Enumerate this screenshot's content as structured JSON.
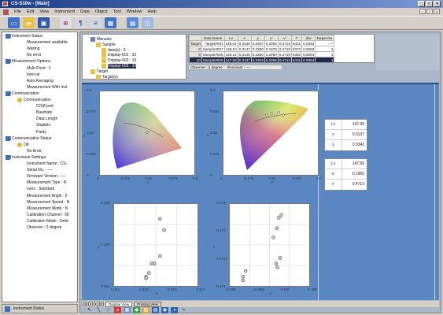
{
  "window": {
    "title": "CS-S10w - [Main]"
  },
  "menu": [
    "File",
    "Edit",
    "View",
    "Instrument",
    "Data",
    "Object",
    "Tool",
    "Window",
    "Help"
  ],
  "toolbar": [
    "new-icon",
    "open-icon",
    "save-icon",
    "measure-icon",
    "tool-icon",
    "list-icon",
    "chart-icon",
    "window-icon",
    "view-icon"
  ],
  "left_tree": [
    {
      "label": "Instrument Status",
      "level": 0,
      "bold": true
    },
    {
      "label": "Measurement available",
      "level": 2
    },
    {
      "label": "Waiting",
      "level": 2
    },
    {
      "label": "No error",
      "level": 2
    },
    {
      "label": "Measurement Options",
      "level": 0,
      "bold": true
    },
    {
      "label": "Multi-Point : 1",
      "level": 2
    },
    {
      "label": "Interval",
      "level": 2
    },
    {
      "label": "Auto Averaging",
      "level": 2
    },
    {
      "label": "Measurement With Inst",
      "level": 2
    },
    {
      "label": "Communication",
      "level": 0,
      "bold": true
    },
    {
      "label": "Communication",
      "level": 1
    },
    {
      "label": "COM port",
      "level": 3
    },
    {
      "label": "Baudrate",
      "level": 3
    },
    {
      "label": "Data Length",
      "level": 3
    },
    {
      "label": "Stopbits",
      "level": 3
    },
    {
      "label": "Parity",
      "level": 3
    },
    {
      "label": "Communication Status",
      "level": 0,
      "bold": true
    },
    {
      "label": "OK",
      "level": 1
    },
    {
      "label": "No Error",
      "level": 2
    },
    {
      "label": "Instrument Settings",
      "level": 0,
      "bold": true
    },
    {
      "label": "Instrument Name : CS-",
      "level": 2
    },
    {
      "label": "Serial No. : ----",
      "level": 2
    },
    {
      "label": "Firmware Version : ----",
      "level": 2
    },
    {
      "label": "Measurement Type : R",
      "level": 2
    },
    {
      "label": "Lens : Standard",
      "level": 2
    },
    {
      "label": "Measurement Angle : 0",
      "level": 2
    },
    {
      "label": "Measurement Speed : N",
      "level": 2
    },
    {
      "label": "Measurement Mode : N",
      "level": 2
    },
    {
      "label": "Calibration Channel : 00",
      "level": 2
    },
    {
      "label": "Calibration Mode : Defa",
      "level": 2
    },
    {
      "label": "Observer : 2 degree",
      "level": 2
    }
  ],
  "status_tab": "Instrument Status",
  "upper_tree": [
    "Manuals",
    "Sample",
    "data(s) : 0",
    "Display-001 : 10",
    "Display-002 : 10",
    "Display-003 : 10",
    "Target",
    "Target(s)"
  ],
  "table": {
    "headers": [
      "",
      "Data Name",
      "Lv",
      "x",
      "y",
      "u'",
      "v'",
      "T",
      "duv",
      "Target No."
    ],
    "rows": [
      {
        "label": "Target",
        "cells": [
          "Target#001",
          "146.01",
          "0.3130",
          "0.3347",
          "0.1905",
          "0.4715",
          "6421",
          "0.0053",
          "----"
        ],
        "selected": false
      },
      {
        "label": "8",
        "cells": [
          "Sample#027",
          "148.10",
          "0.3147",
          "0.3350",
          "0.1970",
          "0.4719",
          "6372",
          "0.0053",
          "1"
        ],
        "selected": false
      },
      {
        "label": "9",
        "cells": [
          "Sample#028",
          "148.12",
          "0.3145",
          "0.3350",
          "0.1960",
          "0.4719",
          "6382",
          "0.0054",
          "1"
        ],
        "selected": false
      },
      {
        "label": "10",
        "cells": [
          "Sample#029",
          "147.99",
          "0.3137",
          "0.3343",
          "0.1965",
          "0.4713",
          "6431",
          "0.0054",
          "1"
        ],
        "selected": true
      }
    ]
  },
  "observer_bar": {
    "observer": "Observer : 2 degree",
    "illuminant": "Illuminant : ----"
  },
  "values_panel": {
    "group1": [
      {
        "k": "Lv",
        "v": "147.99"
      },
      {
        "k": "x",
        "v": "0.3137"
      },
      {
        "k": "y",
        "v": "0.3343"
      }
    ],
    "group2": [
      {
        "k": "Lv",
        "v": "147.99"
      },
      {
        "k": "u'",
        "v": "0.1965"
      },
      {
        "k": "v'",
        "v": "0.4713"
      }
    ]
  },
  "plots": {
    "xy_diagram": {
      "xlabel": "x",
      "ylabel": "y",
      "xticks": [
        "0",
        "0.225",
        "0.45",
        "0.675",
        "0.9"
      ],
      "yticks": [
        "0.9",
        "0.675",
        "0.45",
        "0.225",
        "0"
      ]
    },
    "uv_diagram": {
      "xlabel": "u'",
      "ylabel": "v'",
      "xticks": [
        "0",
        "0.175",
        "0.35",
        "0.525",
        "0.7"
      ],
      "yticks": [
        "0.7",
        "0.525",
        "0.35",
        "0.175",
        "0"
      ]
    },
    "xy_zoom": {
      "xlabel": "x",
      "ylabel": "y",
      "xticks": [
        "0.311",
        "0.313",
        "0.315",
        "0.317"
      ],
      "yticks": [
        "0.338",
        "0.336",
        "0.334"
      ],
      "points": [
        [
          0.3143,
          0.3374
        ],
        [
          0.3146,
          0.3368
        ],
        [
          0.3143,
          0.3354
        ],
        [
          0.3139,
          0.335
        ],
        [
          0.3137,
          0.335
        ],
        [
          0.3135,
          0.3345
        ],
        [
          0.3133,
          0.3343
        ],
        [
          0.3133,
          0.3342
        ]
      ]
    },
    "uv_zoom": {
      "xlabel": "u'",
      "ylabel": "v'",
      "xticks": [
        "0.195",
        "0.1965",
        "0.197",
        "0.198"
      ],
      "yticks": [
        "0.473",
        "0.472",
        "0.4715",
        "0.471"
      ],
      "points": [
        [
          0.19695,
          0.4729
        ],
        [
          0.19685,
          0.47283
        ],
        [
          0.19678,
          0.47255
        ],
        [
          0.19665,
          0.4723
        ],
        [
          0.1969,
          0.47175
        ],
        [
          0.19675,
          0.4716
        ],
        [
          0.1968,
          0.4715
        ],
        [
          0.1956,
          0.4714
        ],
        [
          0.1955,
          0.47125
        ],
        [
          0.1955,
          0.47115
        ]
      ]
    }
  },
  "bottom_tabs": [
    "Display View",
    "Printing View"
  ],
  "colors": {
    "canvas_bg": "#5a87c2",
    "selected_row": "#1f2a4a",
    "point_fill": "#cbcbcb",
    "title_from": "#1d3f8a",
    "title_to": "#7a98d2"
  }
}
